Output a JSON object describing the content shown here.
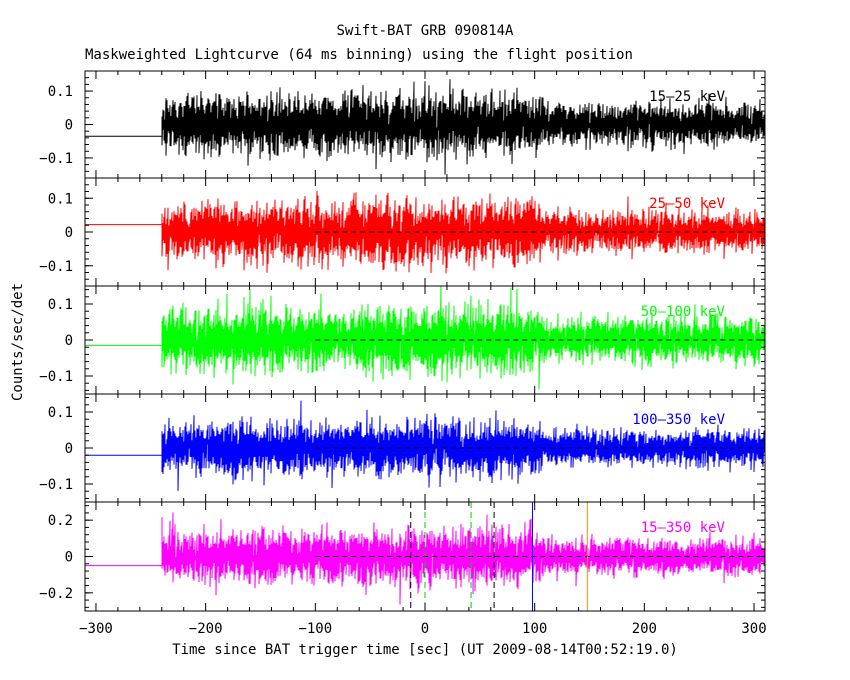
{
  "chart_data": {
    "type": "line",
    "title": "Swift-BAT GRB 090814A",
    "subtitle": "Maskweighted Lightcurve (64 ms binning) using the flight position",
    "xlabel": "Time since BAT trigger time [sec] (UT 2009-08-14T00:52:19.0)",
    "ylabel": "Counts/sec/det",
    "xlim": [
      -310,
      310
    ],
    "x_ticks": [
      -300,
      -200,
      -100,
      0,
      100,
      200,
      300
    ],
    "x_tick_labels": [
      "−300",
      "−200",
      "−100",
      "0",
      "100",
      "200",
      "300"
    ],
    "panels": [
      {
        "band": "15–25 keV",
        "color": "#000000",
        "ylim": [
          -0.16,
          0.16
        ],
        "y_ticks": [
          -0.1,
          0,
          0.1
        ],
        "y_tick_labels": [
          "−0.1",
          "0",
          "0.1"
        ],
        "pre_level": -0.035,
        "show_zero_line": false,
        "noise_before_100s": 0.062,
        "noise_after_100s": 0.042
      },
      {
        "band": "25–50 keV",
        "color": "#ff0000",
        "ylim": [
          -0.16,
          0.16
        ],
        "y_ticks": [
          -0.1,
          0,
          0.1
        ],
        "y_tick_labels": [
          "−0.1",
          "0",
          "0.1"
        ],
        "pre_level": 0.022,
        "show_zero_line": true,
        "noise_before_100s": 0.062,
        "noise_after_100s": 0.042
      },
      {
        "band": "50–100 keV",
        "color": "#00ff00",
        "ylim": [
          -0.15,
          0.15
        ],
        "y_ticks": [
          -0.1,
          0,
          0.1
        ],
        "y_tick_labels": [
          "−0.1",
          "0",
          "0.1"
        ],
        "pre_level": -0.015,
        "show_zero_line": true,
        "noise_before_100s": 0.062,
        "noise_after_100s": 0.042
      },
      {
        "band": "100–350 keV",
        "color": "#0000ff",
        "ylim": [
          -0.15,
          0.15
        ],
        "y_ticks": [
          -0.1,
          0,
          0.1
        ],
        "y_tick_labels": [
          "−0.1",
          "0",
          "0.1"
        ],
        "pre_level": -0.02,
        "show_zero_line": true,
        "noise_before_100s": 0.05,
        "noise_after_100s": 0.035
      },
      {
        "band": "15–350 keV",
        "color": "#ff00ff",
        "ylim": [
          -0.3,
          0.3
        ],
        "y_ticks": [
          -0.2,
          0,
          0.2
        ],
        "y_tick_labels": [
          "−0.2",
          "0",
          "0.2"
        ],
        "pre_level": -0.05,
        "show_zero_line": true,
        "noise_before_100s": 0.1,
        "noise_after_100s": 0.07
      }
    ],
    "data_start": -240,
    "data_end": 310,
    "bin_seconds": 0.064,
    "zero_line_start": -100,
    "vertical_markers": [
      {
        "x": -13,
        "color": "#000000",
        "style": "dashed"
      },
      {
        "x": 0,
        "color": "#00cc00",
        "style": "dashed"
      },
      {
        "x": 42,
        "color": "#00cc00",
        "style": "dashed"
      },
      {
        "x": 63,
        "color": "#000000",
        "style": "dashed"
      },
      {
        "x": 98,
        "color": "#0000ff",
        "style": "solid"
      },
      {
        "x": 148,
        "color": "#ff8c00",
        "style": "solid"
      }
    ]
  }
}
